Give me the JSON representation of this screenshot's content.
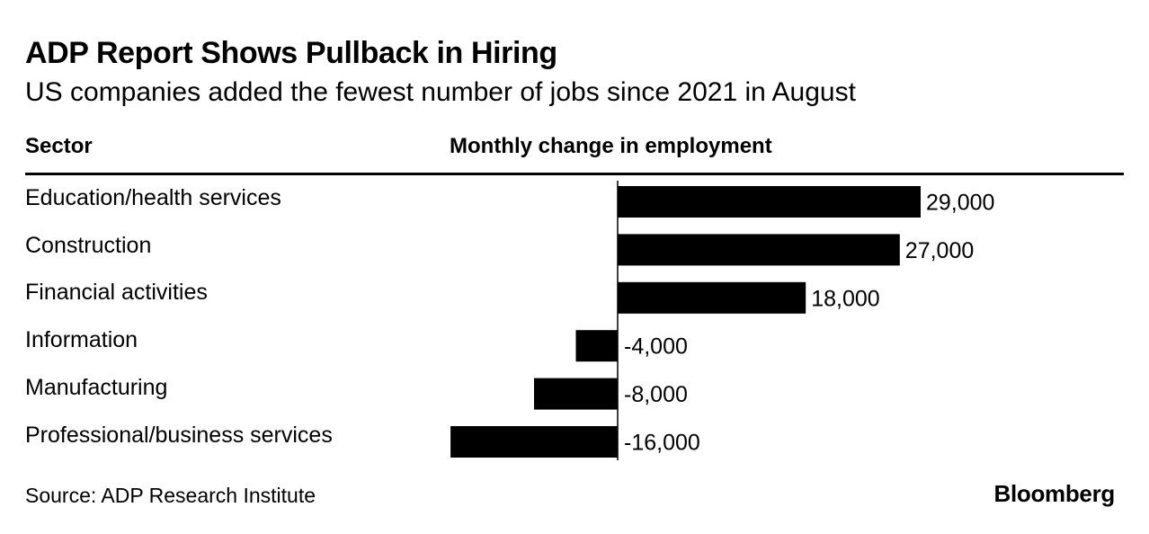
{
  "title": "ADP Report Shows Pullback in Hiring",
  "subtitle": "US companies added the fewest number of jobs since 2021 in August",
  "columns": {
    "sector": "Sector",
    "change": "Monthly change in employment"
  },
  "source": "Source: ADP Research Institute",
  "brand": "Bloomberg",
  "chart_data": {
    "type": "bar",
    "orientation": "horizontal",
    "title": "ADP Report Shows Pullback in Hiring",
    "subtitle": "US companies added the fewest number of jobs since 2021 in August",
    "categories": [
      "Education/health services",
      "Construction",
      "Financial activities",
      "Information",
      "Manufacturing",
      "Professional/business services"
    ],
    "values": [
      29000,
      27000,
      18000,
      -4000,
      -8000,
      -16000
    ],
    "value_labels": [
      "29,000",
      "27,000",
      "18,000",
      "-4,000",
      "-8,000",
      "-16,000"
    ],
    "xlabel": "Monthly change in employment",
    "ylabel": "Sector",
    "xlim": [
      -16000,
      29000
    ],
    "grid": false,
    "bar_color": "#000000"
  }
}
